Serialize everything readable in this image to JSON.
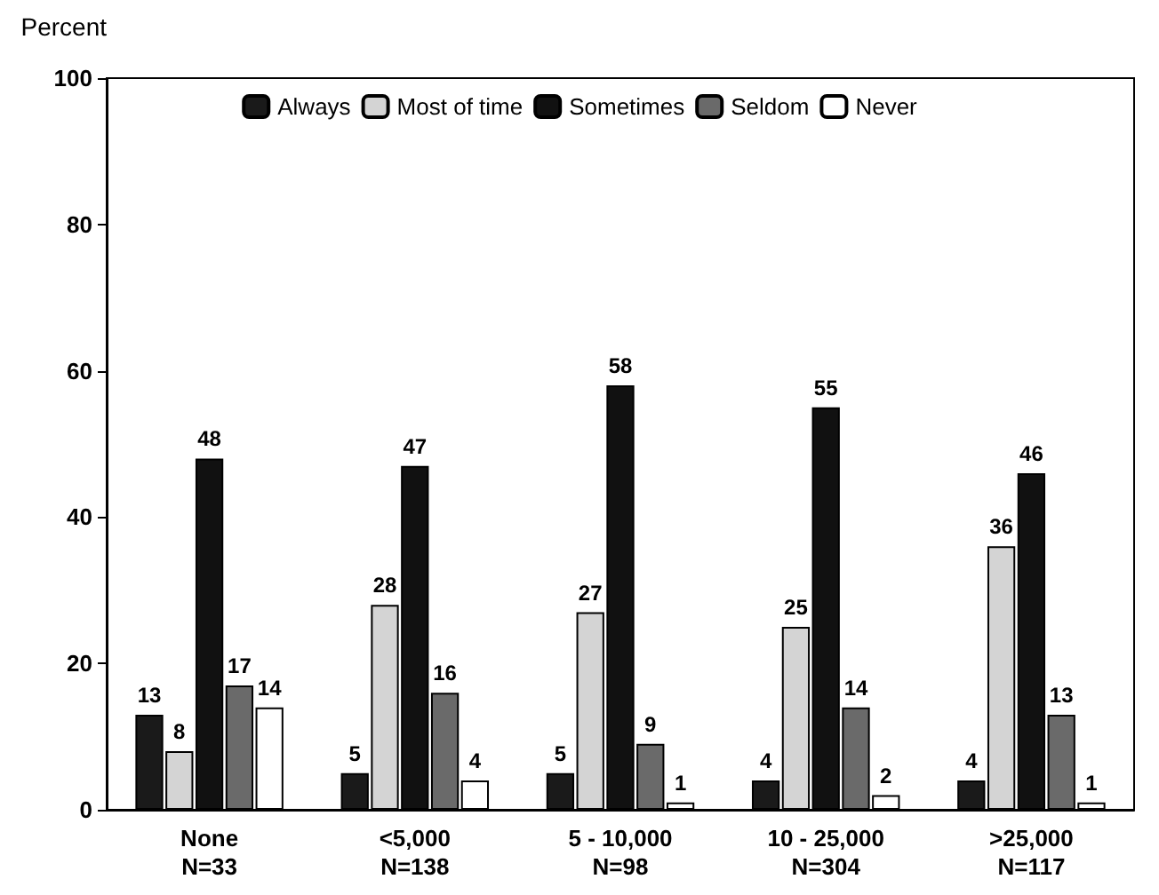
{
  "chart_data": {
    "type": "bar",
    "ylabel": "Percent",
    "categories": [
      "None\nN=33",
      "<5,000\nN=138",
      "5 - 10,000\nN=98",
      "10 - 25,000\nN=304",
      ">25,000\nN=117"
    ],
    "series": [
      {
        "name": "Always",
        "color": "#1a1a1a",
        "values": [
          13,
          5,
          5,
          4,
          4
        ]
      },
      {
        "name": "Most of time",
        "color": "#d4d4d4",
        "values": [
          8,
          28,
          27,
          25,
          36
        ]
      },
      {
        "name": "Sometimes",
        "color": "#111111",
        "values": [
          48,
          47,
          58,
          55,
          46
        ]
      },
      {
        "name": "Seldom",
        "color": "#6a6a6a",
        "values": [
          17,
          16,
          9,
          14,
          13
        ]
      },
      {
        "name": "Never",
        "color": "#ffffff",
        "values": [
          14,
          4,
          1,
          2,
          1
        ]
      }
    ],
    "ylim": [
      0,
      100
    ],
    "yticks": [
      0,
      20,
      40,
      60,
      80,
      100
    ],
    "grid": false,
    "legend": "top",
    "data_labels": true
  }
}
